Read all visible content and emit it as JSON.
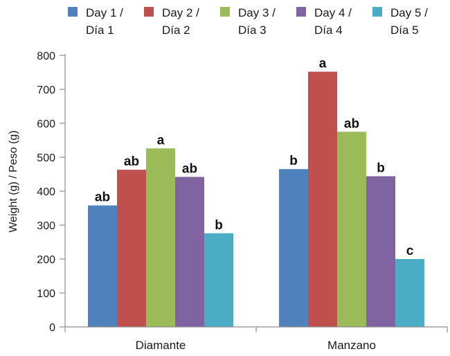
{
  "chart_data": {
    "type": "bar",
    "ylabel": "Weight (g) / Peso (g)",
    "xlabel": "",
    "ylim": [
      0,
      800
    ],
    "yticks": [
      0,
      100,
      200,
      300,
      400,
      500,
      600,
      700,
      800
    ],
    "categories": [
      "Diamante",
      "Manzano"
    ],
    "legend_position": "top",
    "grid": false,
    "series": [
      {
        "name_lines": [
          "Day 1 /",
          "Día 1"
        ],
        "color": "#4f81bd",
        "values": [
          358,
          465
        ],
        "labels": [
          "ab",
          "b"
        ]
      },
      {
        "name_lines": [
          "Day 2 /",
          "Día 2"
        ],
        "color": "#c0504d",
        "values": [
          463,
          752
        ],
        "labels": [
          "ab",
          "a"
        ]
      },
      {
        "name_lines": [
          "Day 3 /",
          "Día 3"
        ],
        "color": "#9bbb59",
        "values": [
          526,
          575
        ],
        "labels": [
          "a",
          "ab"
        ]
      },
      {
        "name_lines": [
          "Day 4 /",
          "Día 4"
        ],
        "color": "#8064a2",
        "values": [
          442,
          444
        ],
        "labels": [
          "ab",
          "b"
        ]
      },
      {
        "name_lines": [
          "Day 5 /",
          "Día 5"
        ],
        "color": "#4bacc6",
        "values": [
          276,
          200
        ],
        "labels": [
          "b",
          "c"
        ]
      }
    ]
  }
}
